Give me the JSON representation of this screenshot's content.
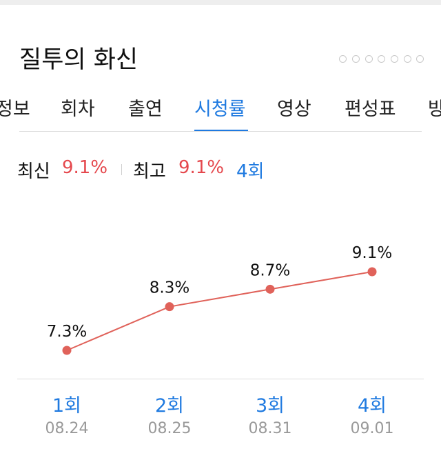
{
  "title": "질투의 화신",
  "pager": {
    "count": 7,
    "active_index": 3
  },
  "tabs": [
    {
      "label": "정보",
      "active": false
    },
    {
      "label": "회차",
      "active": false
    },
    {
      "label": "출연",
      "active": false
    },
    {
      "label": "시청률",
      "active": true
    },
    {
      "label": "영상",
      "active": false
    },
    {
      "label": "편성표",
      "active": false
    },
    {
      "label": "방",
      "active": false
    }
  ],
  "summary": {
    "latest_label": "최신",
    "latest_value": "9.1%",
    "best_label": "최고",
    "best_value": "9.1%",
    "best_episode": "4회"
  },
  "colors": {
    "accent": "#1f7ae0",
    "rating_red": "#e5484d",
    "line": "#e0625a",
    "muted": "#999999"
  },
  "chart_data": {
    "type": "line",
    "categories": [
      "1회",
      "2회",
      "3회",
      "4회"
    ],
    "dates": [
      "08.24",
      "08.25",
      "08.31",
      "09.01"
    ],
    "values": [
      7.3,
      8.3,
      8.7,
      9.1
    ],
    "value_labels": [
      "7.3%",
      "8.3%",
      "8.7%",
      "9.1%"
    ],
    "title": "",
    "xlabel": "",
    "ylabel": "",
    "grid": false
  }
}
